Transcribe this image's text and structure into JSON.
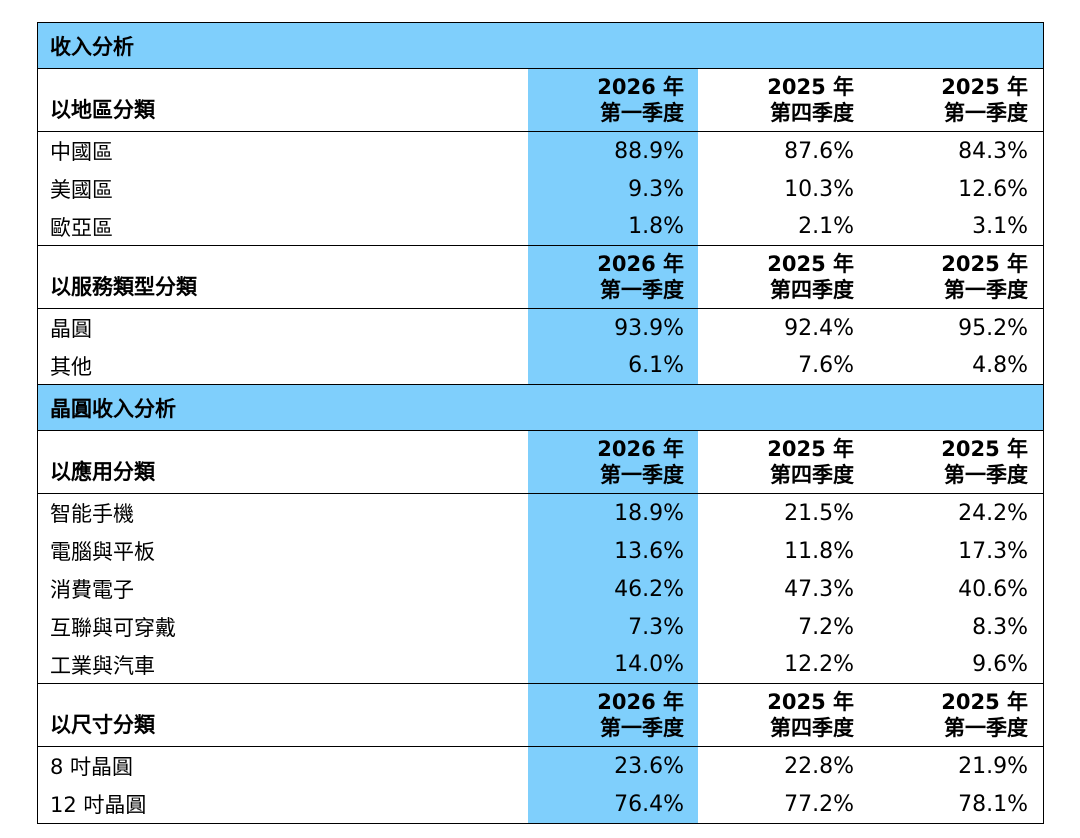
{
  "sections": [
    {
      "title": "收入分析",
      "groups": [
        {
          "header": "以地區分類",
          "columns": [
            [
              "2026 年",
              "第一季度"
            ],
            [
              "2025 年",
              "第四季度"
            ],
            [
              "2025 年",
              "第一季度"
            ]
          ],
          "rows": [
            {
              "label": "中國區",
              "values": [
                "88.9%",
                "87.6%",
                "84.3%"
              ]
            },
            {
              "label": "美國區",
              "values": [
                "9.3%",
                "10.3%",
                "12.6%"
              ]
            },
            {
              "label": "歐亞區",
              "values": [
                "1.8%",
                "2.1%",
                "3.1%"
              ]
            }
          ]
        },
        {
          "header": "以服務類型分類",
          "columns": [
            [
              "2026 年",
              "第一季度"
            ],
            [
              "2025 年",
              "第四季度"
            ],
            [
              "2025 年",
              "第一季度"
            ]
          ],
          "rows": [
            {
              "label": "晶圓",
              "values": [
                "93.9%",
                "92.4%",
                "95.2%"
              ]
            },
            {
              "label": "其他",
              "values": [
                "6.1%",
                "7.6%",
                "4.8%"
              ]
            }
          ]
        }
      ]
    },
    {
      "title": "晶圓收入分析",
      "groups": [
        {
          "header": "以應用分類",
          "columns": [
            [
              "2026 年",
              "第一季度"
            ],
            [
              "2025 年",
              "第四季度"
            ],
            [
              "2025 年",
              "第一季度"
            ]
          ],
          "rows": [
            {
              "label": "智能手機",
              "values": [
                "18.9%",
                "21.5%",
                "24.2%"
              ]
            },
            {
              "label": "電腦與平板",
              "values": [
                "13.6%",
                "11.8%",
                "17.3%"
              ]
            },
            {
              "label": "消費電子",
              "values": [
                "46.2%",
                "47.3%",
                "40.6%"
              ]
            },
            {
              "label": "互聯與可穿戴",
              "values": [
                "7.3%",
                "7.2%",
                "8.3%"
              ]
            },
            {
              "label": "工業與汽車",
              "values": [
                "14.0%",
                "12.2%",
                "9.6%"
              ]
            }
          ]
        },
        {
          "header": "以尺寸分類",
          "columns": [
            [
              "2026 年",
              "第一季度"
            ],
            [
              "2025 年",
              "第四季度"
            ],
            [
              "2025 年",
              "第一季度"
            ]
          ],
          "rows": [
            {
              "label": "8 吋晶圓",
              "values": [
                "23.6%",
                "22.8%",
                "21.9%"
              ]
            },
            {
              "label": "12 吋晶圓",
              "values": [
                "76.4%",
                "77.2%",
                "78.1%"
              ]
            }
          ]
        }
      ]
    }
  ],
  "colors": {
    "highlight": "#7fcffc",
    "border": "#000000"
  }
}
